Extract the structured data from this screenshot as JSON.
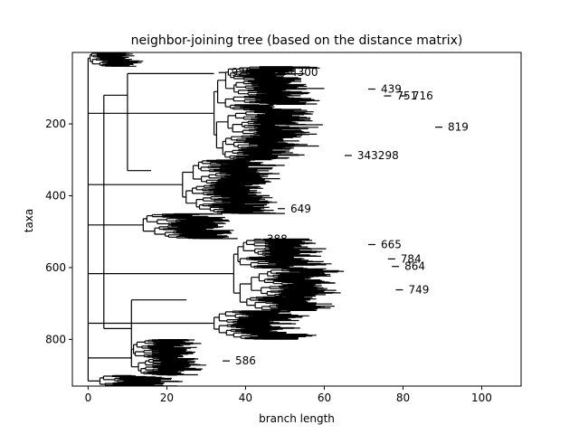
{
  "figure": {
    "title": "neighbor-joining tree (based on the distance matrix)",
    "xlabel": "branch length",
    "ylabel": "taxa"
  },
  "chart_data": {
    "type": "dendrogram",
    "title": "neighbor-joining tree (based on the distance matrix)",
    "xlabel": "branch length",
    "ylabel": "taxa",
    "xlim": [
      -4,
      110
    ],
    "ylim": [
      930,
      1
    ],
    "y_inverted": true,
    "x_ticks": [
      0,
      20,
      40,
      60,
      80,
      100
    ],
    "y_ticks": [
      200,
      400,
      600,
      800
    ],
    "n_taxa": 930,
    "line_color": "#000000",
    "visible_leaf_labels": [
      {
        "label": "439",
        "x": 73,
        "y": 103
      },
      {
        "label": "716",
        "x": 81,
        "y": 122
      },
      {
        "label": "751",
        "x": 77,
        "y": 122
      },
      {
        "label": "819",
        "x": 90,
        "y": 209
      },
      {
        "label": "343298",
        "x": 67,
        "y": 288
      },
      {
        "label": "649",
        "x": 50,
        "y": 436
      },
      {
        "label": "665",
        "x": 73,
        "y": 536
      },
      {
        "label": "784",
        "x": 78,
        "y": 576
      },
      {
        "label": "864",
        "x": 79,
        "y": 597
      },
      {
        "label": "749",
        "x": 80,
        "y": 662
      },
      {
        "label": "4300",
        "x": 50,
        "y": 57
      },
      {
        "label": "388",
        "x": 44,
        "y": 521
      },
      {
        "label": "920",
        "x": 35,
        "y": 57
      },
      {
        "label": "586",
        "x": 36,
        "y": 860
      }
    ]
  }
}
